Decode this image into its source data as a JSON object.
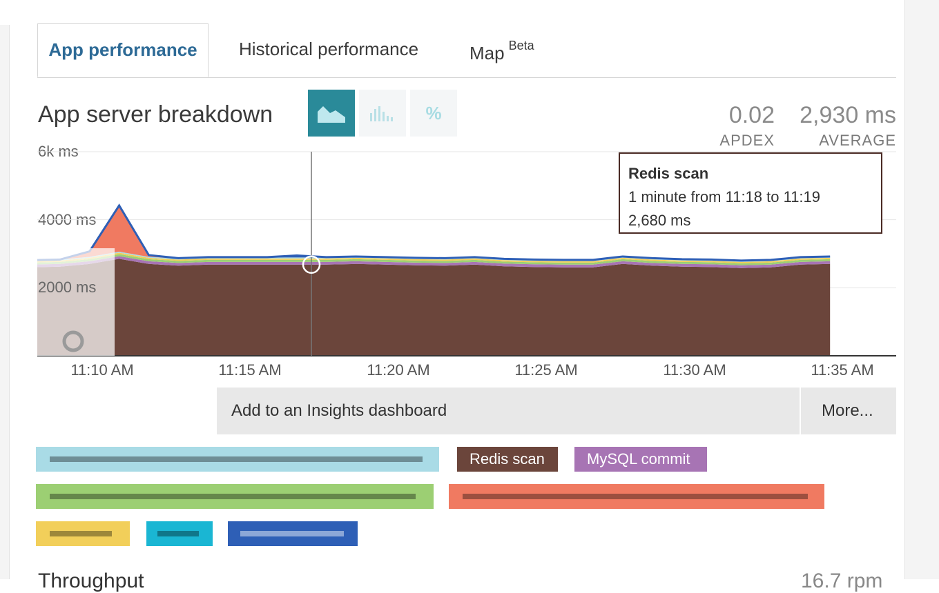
{
  "tabs": [
    {
      "label": "App performance",
      "active": true
    },
    {
      "label": "Historical performance",
      "active": false
    },
    {
      "label": "Map",
      "sup": "Beta",
      "active": false
    }
  ],
  "chart_title": "App server breakdown",
  "view_buttons": [
    {
      "icon": "area-chart-icon",
      "selected": true
    },
    {
      "icon": "bar-chart-icon",
      "selected": false
    },
    {
      "icon": "percent-icon",
      "label": "%",
      "selected": false
    }
  ],
  "metrics": {
    "apdex": {
      "value": "0.02",
      "label": "APDEX"
    },
    "average": {
      "value": "2,930 ms",
      "label": "AVERAGE"
    }
  },
  "tooltip": {
    "title": "Redis scan",
    "range": "1 minute from 11:18 to 11:19",
    "value": "2,680 ms"
  },
  "actions": {
    "insights": "Add to an Insights dashboard",
    "more": "More..."
  },
  "legend": [
    {
      "label": "",
      "color": "#a9dbe6",
      "obscured": true
    },
    {
      "label": "Redis scan",
      "color": "#6b453b",
      "obscured": false
    },
    {
      "label": "MySQL commit",
      "color": "#a774b4",
      "obscured": false
    },
    {
      "label": "",
      "color": "#9ccf73",
      "obscured": true
    },
    {
      "label": "",
      "color": "#f07a61",
      "obscured": true
    },
    {
      "label": "",
      "color": "#f2cf5a",
      "obscured": true
    },
    {
      "label": "",
      "color": "#1ab6d3",
      "obscured": true
    },
    {
      "label": "",
      "color": "#2e5fb6",
      "obscured": true
    }
  ],
  "next_section": {
    "title": "Throughput",
    "value": "16.7 rpm"
  },
  "chart_data": {
    "type": "area",
    "y_unit": "ms",
    "ylim": [
      0,
      6000
    ],
    "y_ticks": [
      "6k ms",
      "4000 ms",
      "2000 ms"
    ],
    "x_ticks": [
      "11:10 AM",
      "11:15 AM",
      "11:20 AM",
      "11:25 AM",
      "11:30 AM",
      "11:35 AM"
    ],
    "x": [
      "11:08",
      "11:09",
      "11:10",
      "11:11",
      "11:12",
      "11:13",
      "11:14",
      "11:15",
      "11:16",
      "11:17",
      "11:18",
      "11:19",
      "11:20",
      "11:21",
      "11:22",
      "11:23",
      "11:24",
      "11:25",
      "11:26",
      "11:27",
      "11:28",
      "11:29",
      "11:30",
      "11:31",
      "11:32",
      "11:33",
      "11:34",
      "11:35",
      "11:36"
    ],
    "hover_x": "11:18",
    "series": [
      {
        "name": "Redis scan",
        "color": "#6b453b",
        "values": [
          2650,
          2600,
          2620,
          2700,
          2850,
          2700,
          2650,
          2680,
          2680,
          2680,
          2680,
          2680,
          2700,
          2680,
          2660,
          2650,
          2680,
          2630,
          2610,
          2600,
          2600,
          2700,
          2650,
          2620,
          2610,
          2580,
          2600,
          2680,
          2700
        ]
      },
      {
        "name": "MySQL commit",
        "color": "#a774b4",
        "values": [
          80,
          80,
          80,
          80,
          80,
          80,
          80,
          80,
          80,
          80,
          80,
          80,
          80,
          80,
          80,
          80,
          80,
          80,
          80,
          80,
          80,
          80,
          80,
          80,
          80,
          80,
          80,
          80,
          80
        ]
      },
      {
        "name": "",
        "color": "#9ccf73",
        "values": [
          60,
          60,
          60,
          60,
          60,
          60,
          60,
          60,
          60,
          60,
          60,
          60,
          60,
          60,
          60,
          60,
          60,
          60,
          60,
          60,
          60,
          60,
          60,
          60,
          60,
          60,
          60,
          60,
          60
        ]
      },
      {
        "name": "",
        "color": "#f2cf5a",
        "values": [
          40,
          40,
          40,
          40,
          40,
          40,
          40,
          40,
          40,
          40,
          40,
          40,
          40,
          40,
          40,
          40,
          40,
          40,
          40,
          40,
          40,
          40,
          40,
          40,
          40,
          40,
          40,
          40,
          40
        ]
      },
      {
        "name": "",
        "color": "#a9dbe6",
        "values": [
          30,
          30,
          30,
          30,
          30,
          30,
          30,
          30,
          30,
          30,
          30,
          30,
          30,
          30,
          30,
          30,
          30,
          30,
          30,
          30,
          30,
          30,
          30,
          30,
          30,
          30,
          30,
          30,
          30
        ]
      },
      {
        "name": "",
        "color": "#f07a61",
        "values": [
          0,
          0,
          0,
          150,
          1350,
          40,
          0,
          0,
          0,
          0,
          0,
          0,
          0,
          0,
          0,
          0,
          0,
          0,
          0,
          0,
          0,
          0,
          0,
          0,
          0,
          0,
          0,
          0,
          0
        ]
      },
      {
        "name": "",
        "color": "#2e5fb6",
        "values": [
          0,
          0,
          0,
          10,
          10,
          10,
          10,
          10,
          10,
          10,
          60,
          10,
          10,
          10,
          10,
          10,
          10,
          10,
          10,
          10,
          10,
          10,
          10,
          10,
          10,
          10,
          10,
          10,
          10
        ]
      }
    ]
  }
}
